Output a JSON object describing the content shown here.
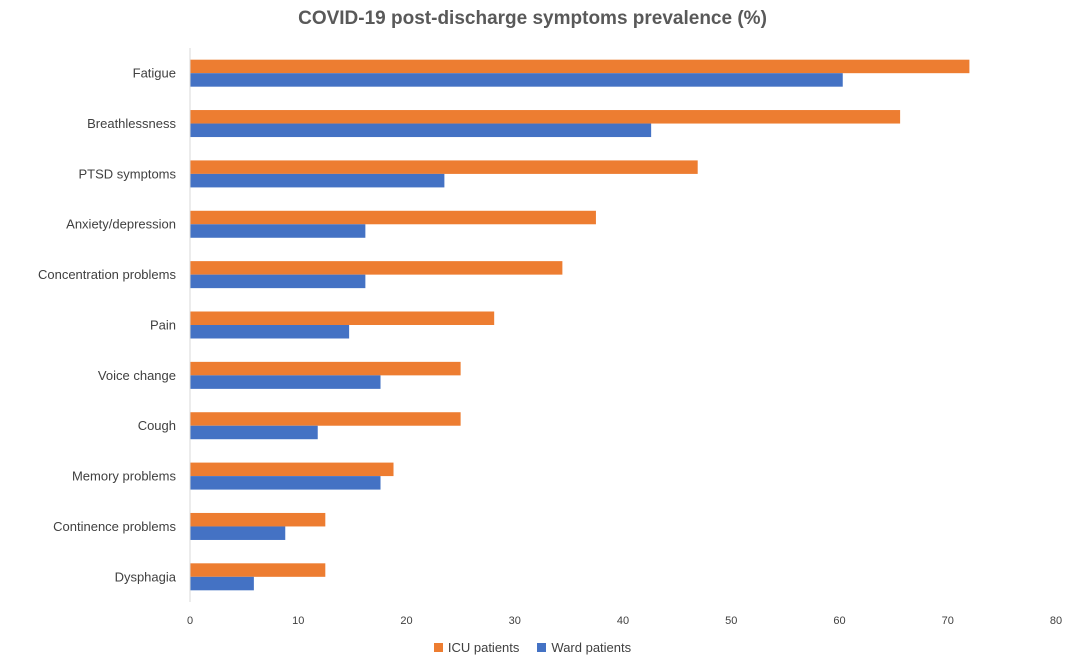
{
  "chart_data": {
    "type": "bar",
    "orientation": "horizontal",
    "title": "COVID-19 post-discharge symptoms prevalence (%)",
    "categories": [
      "Fatigue",
      "Breathlessness",
      "PTSD symptoms",
      "Anxiety/depression",
      "Concentration problems",
      "Pain",
      "Voice change",
      "Cough",
      "Memory problems",
      "Continence problems",
      "Dysphagia"
    ],
    "series": [
      {
        "name": "ICU patients",
        "color": "#ED7D31",
        "values": [
          72,
          65.6,
          46.9,
          37.5,
          34.4,
          28.1,
          25,
          25,
          18.8,
          12.5,
          12.5
        ]
      },
      {
        "name": "Ward patients",
        "color": "#4472C4",
        "values": [
          60.3,
          42.6,
          23.5,
          16.2,
          16.2,
          14.7,
          17.6,
          11.8,
          17.6,
          8.8,
          5.9
        ]
      }
    ],
    "xlim": [
      0,
      80
    ],
    "xticks": [
      0,
      10,
      20,
      30,
      40,
      50,
      60,
      70,
      80
    ],
    "xlabel": "",
    "ylabel": "",
    "grid": false,
    "legend": "bottom"
  }
}
